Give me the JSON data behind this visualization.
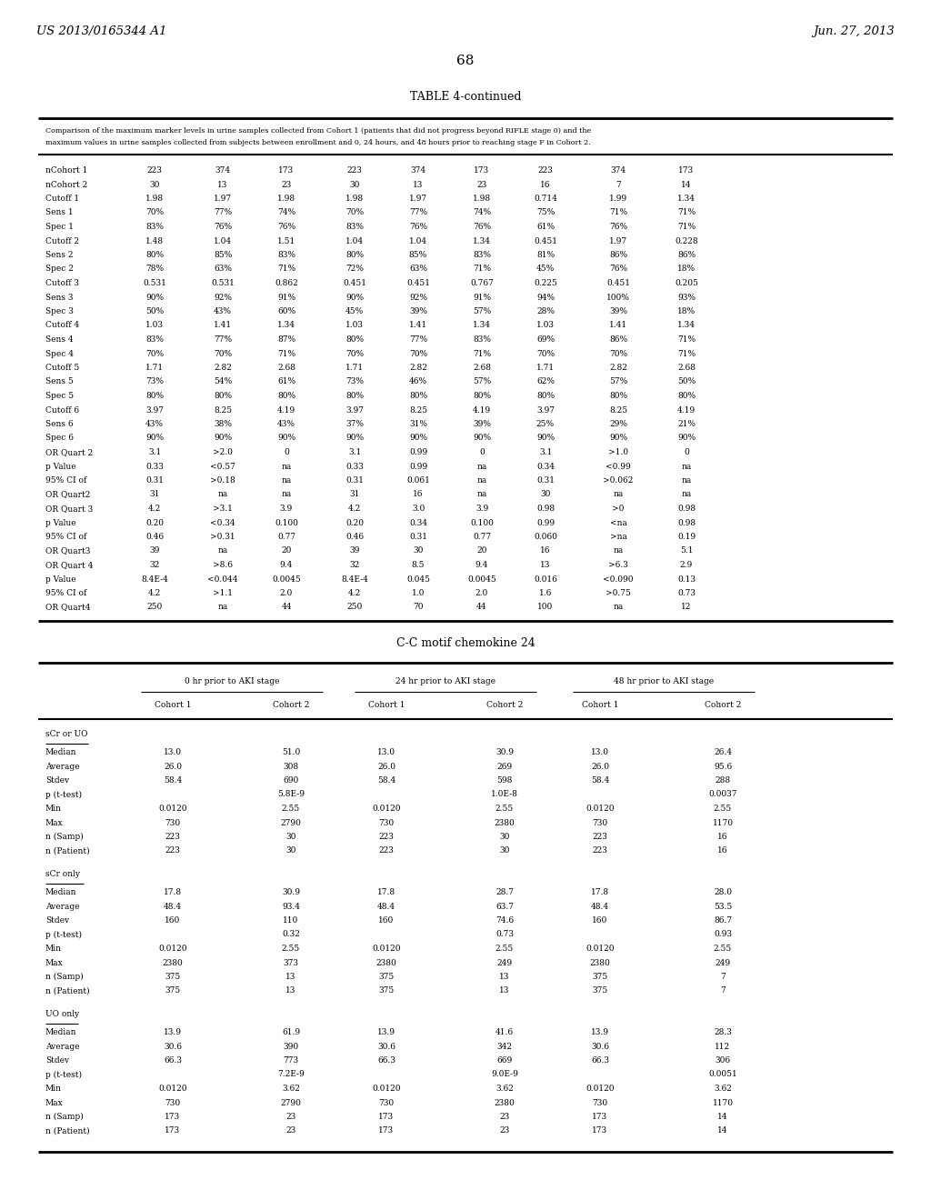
{
  "page_number": "68",
  "patent_left": "US 2013/0165344 A1",
  "patent_right": "Jun. 27, 2013",
  "table_title": "TABLE 4-continued",
  "desc_line1": "Comparison of the maximum marker levels in urine samples collected from Cohort 1 (patients that did not progress beyond RIFLE stage 0) and the",
  "desc_line2": "maximum values in urine samples collected from subjects between enrollment and 0, 24 hours, and 48 hours prior to reaching stage F in Cohort 2.",
  "upper_rows": [
    [
      "nCohort 1",
      "223",
      "374",
      "173",
      "223",
      "374",
      "173",
      "223",
      "374",
      "173"
    ],
    [
      "nCohort 2",
      "30",
      "13",
      "23",
      "30",
      "13",
      "23",
      "16",
      "7",
      "14"
    ],
    [
      "Cutoff 1",
      "1.98",
      "1.97",
      "1.98",
      "1.98",
      "1.97",
      "1.98",
      "0.714",
      "1.99",
      "1.34"
    ],
    [
      "Sens 1",
      "70%",
      "77%",
      "74%",
      "70%",
      "77%",
      "74%",
      "75%",
      "71%",
      "71%"
    ],
    [
      "Spec 1",
      "83%",
      "76%",
      "76%",
      "83%",
      "76%",
      "76%",
      "61%",
      "76%",
      "71%"
    ],
    [
      "Cutoff 2",
      "1.48",
      "1.04",
      "1.51",
      "1.04",
      "1.04",
      "1.34",
      "0.451",
      "1.97",
      "0.228"
    ],
    [
      "Sens 2",
      "80%",
      "85%",
      "83%",
      "80%",
      "85%",
      "83%",
      "81%",
      "86%",
      "86%"
    ],
    [
      "Spec 2",
      "78%",
      "63%",
      "71%",
      "72%",
      "63%",
      "71%",
      "45%",
      "76%",
      "18%"
    ],
    [
      "Cutoff 3",
      "0.531",
      "0.531",
      "0.862",
      "0.451",
      "0.451",
      "0.767",
      "0.225",
      "0.451",
      "0.205"
    ],
    [
      "Sens 3",
      "90%",
      "92%",
      "91%",
      "90%",
      "92%",
      "91%",
      "94%",
      "100%",
      "93%"
    ],
    [
      "Spec 3",
      "50%",
      "43%",
      "60%",
      "45%",
      "39%",
      "57%",
      "28%",
      "39%",
      "18%"
    ],
    [
      "Cutoff 4",
      "1.03",
      "1.41",
      "1.34",
      "1.03",
      "1.41",
      "1.34",
      "1.03",
      "1.41",
      "1.34"
    ],
    [
      "Sens 4",
      "83%",
      "77%",
      "87%",
      "80%",
      "77%",
      "83%",
      "69%",
      "86%",
      "71%"
    ],
    [
      "Spec 4",
      "70%",
      "70%",
      "71%",
      "70%",
      "70%",
      "71%",
      "70%",
      "70%",
      "71%"
    ],
    [
      "Cutoff 5",
      "1.71",
      "2.82",
      "2.68",
      "1.71",
      "2.82",
      "2.68",
      "1.71",
      "2.82",
      "2.68"
    ],
    [
      "Sens 5",
      "73%",
      "54%",
      "61%",
      "73%",
      "46%",
      "57%",
      "62%",
      "57%",
      "50%"
    ],
    [
      "Spec 5",
      "80%",
      "80%",
      "80%",
      "80%",
      "80%",
      "80%",
      "80%",
      "80%",
      "80%"
    ],
    [
      "Cutoff 6",
      "3.97",
      "8.25",
      "4.19",
      "3.97",
      "8.25",
      "4.19",
      "3.97",
      "8.25",
      "4.19"
    ],
    [
      "Sens 6",
      "43%",
      "38%",
      "43%",
      "37%",
      "31%",
      "39%",
      "25%",
      "29%",
      "21%"
    ],
    [
      "Spec 6",
      "90%",
      "90%",
      "90%",
      "90%",
      "90%",
      "90%",
      "90%",
      "90%",
      "90%"
    ],
    [
      "OR Quart 2",
      "3.1",
      ">2.0",
      "0",
      "3.1",
      "0.99",
      "0",
      "3.1",
      ">1.0",
      "0"
    ],
    [
      "p Value",
      "0.33",
      "<0.57",
      "na",
      "0.33",
      "0.99",
      "na",
      "0.34",
      "<0.99",
      "na"
    ],
    [
      "95% CI of",
      "0.31",
      ">0.18",
      "na",
      "0.31",
      "0.061",
      "na",
      "0.31",
      ">0.062",
      "na"
    ],
    [
      "OR Quart2",
      "31",
      "na",
      "na",
      "31",
      "16",
      "na",
      "30",
      "na",
      "na"
    ],
    [
      "OR Quart 3",
      "4.2",
      ">3.1",
      "3.9",
      "4.2",
      "3.0",
      "3.9",
      "0.98",
      ">0",
      "0.98"
    ],
    [
      "p Value",
      "0.20",
      "<0.34",
      "0.100",
      "0.20",
      "0.34",
      "0.100",
      "0.99",
      "<na",
      "0.98"
    ],
    [
      "95% CI of",
      "0.46",
      ">0.31",
      "0.77",
      "0.46",
      "0.31",
      "0.77",
      "0.060",
      ">na",
      "0.19"
    ],
    [
      "OR Quart3",
      "39",
      "na",
      "20",
      "39",
      "30",
      "20",
      "16",
      "na",
      "5.1"
    ],
    [
      "OR Quart 4",
      "32",
      ">8.6",
      "9.4",
      "32",
      "8.5",
      "9.4",
      "13",
      ">6.3",
      "2.9"
    ],
    [
      "p Value",
      "8.4E-4",
      "<0.044",
      "0.0045",
      "8.4E-4",
      "0.045",
      "0.0045",
      "0.016",
      "<0.090",
      "0.13"
    ],
    [
      "95% CI of",
      "4.2",
      ">1.1",
      "2.0",
      "4.2",
      "1.0",
      "2.0",
      "1.6",
      ">0.75",
      "0.73"
    ],
    [
      "OR Quart4",
      "250",
      "na",
      "44",
      "250",
      "70",
      "44",
      "100",
      "na",
      "12"
    ]
  ],
  "lower_table_title": "C-C motif chemokine 24",
  "lower_groups": [
    "0 hr prior to AKI stage",
    "24 hr prior to AKI stage",
    "48 hr prior to AKI stage"
  ],
  "lower_subgroups": [
    "Cohort 1",
    "Cohort 2",
    "Cohort 1",
    "Cohort 2",
    "Cohort 1",
    "Cohort 2"
  ],
  "lower_sections": [
    {
      "label": "sCr or UO",
      "rows": [
        [
          "Median",
          "13.0",
          "51.0",
          "13.0",
          "30.9",
          "13.0",
          "26.4"
        ],
        [
          "Average",
          "26.0",
          "308",
          "26.0",
          "269",
          "26.0",
          "95.6"
        ],
        [
          "Stdev",
          "58.4",
          "690",
          "58.4",
          "598",
          "58.4",
          "288"
        ],
        [
          "p (t-test)",
          "",
          "5.8E-9",
          "",
          "1.0E-8",
          "",
          "0.0037"
        ],
        [
          "Min",
          "0.0120",
          "2.55",
          "0.0120",
          "2.55",
          "0.0120",
          "2.55"
        ],
        [
          "Max",
          "730",
          "2790",
          "730",
          "2380",
          "730",
          "1170"
        ],
        [
          "n (Samp)",
          "223",
          "30",
          "223",
          "30",
          "223",
          "16"
        ],
        [
          "n (Patient)",
          "223",
          "30",
          "223",
          "30",
          "223",
          "16"
        ]
      ]
    },
    {
      "label": "sCr only",
      "rows": [
        [
          "Median",
          "17.8",
          "30.9",
          "17.8",
          "28.7",
          "17.8",
          "28.0"
        ],
        [
          "Average",
          "48.4",
          "93.4",
          "48.4",
          "63.7",
          "48.4",
          "53.5"
        ],
        [
          "Stdev",
          "160",
          "110",
          "160",
          "74.6",
          "160",
          "86.7"
        ],
        [
          "p (t-test)",
          "",
          "0.32",
          "",
          "0.73",
          "",
          "0.93"
        ],
        [
          "Min",
          "0.0120",
          "2.55",
          "0.0120",
          "2.55",
          "0.0120",
          "2.55"
        ],
        [
          "Max",
          "2380",
          "373",
          "2380",
          "249",
          "2380",
          "249"
        ],
        [
          "n (Samp)",
          "375",
          "13",
          "375",
          "13",
          "375",
          "7"
        ],
        [
          "n (Patient)",
          "375",
          "13",
          "375",
          "13",
          "375",
          "7"
        ]
      ]
    },
    {
      "label": "UO only",
      "rows": [
        [
          "Median",
          "13.9",
          "61.9",
          "13.9",
          "41.6",
          "13.9",
          "28.3"
        ],
        [
          "Average",
          "30.6",
          "390",
          "30.6",
          "342",
          "30.6",
          "112"
        ],
        [
          "Stdev",
          "66.3",
          "773",
          "66.3",
          "669",
          "66.3",
          "306"
        ],
        [
          "p (t-test)",
          "",
          "7.2E-9",
          "",
          "9.0E-9",
          "",
          "0.0051"
        ],
        [
          "Min",
          "0.0120",
          "3.62",
          "0.0120",
          "3.62",
          "0.0120",
          "3.62"
        ],
        [
          "Max",
          "730",
          "2790",
          "730",
          "2380",
          "730",
          "1170"
        ],
        [
          "n (Samp)",
          "173",
          "23",
          "173",
          "23",
          "173",
          "14"
        ],
        [
          "n (Patient)",
          "173",
          "23",
          "173",
          "23",
          "173",
          "14"
        ]
      ]
    }
  ]
}
